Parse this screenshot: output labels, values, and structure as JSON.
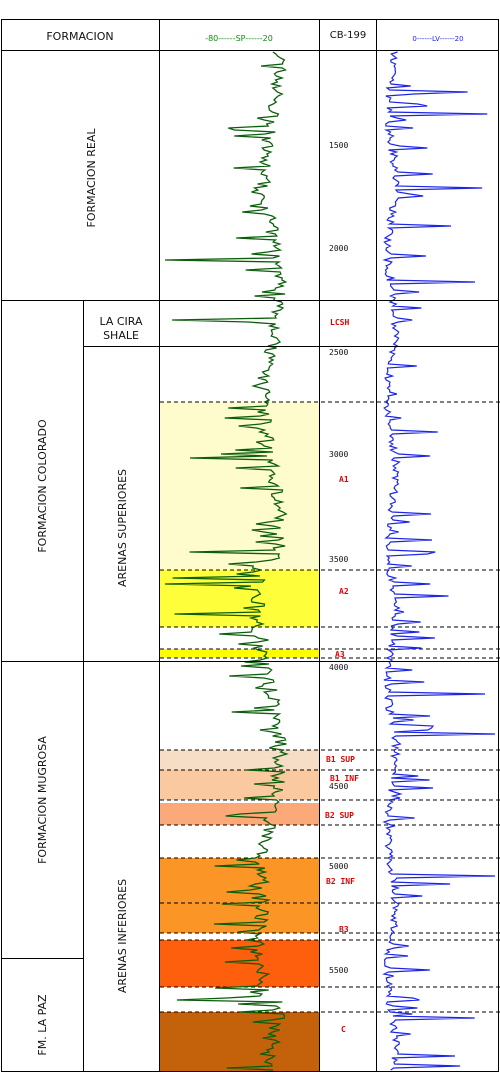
{
  "headers": {
    "formation": "FORMACION",
    "sp_scale": "-80------SP------20",
    "well": "CB-199",
    "lv_scale": "0------LV------20"
  },
  "formations": {
    "real": "FORMACION REAL",
    "colorado": "FORMACION COLORADO",
    "mugrosa": "FORMACION MUGROSA",
    "la_paz": "FM. LA PAZ"
  },
  "members": {
    "la_cira_line1": "LA CIRA",
    "la_cira_line2": "SHALE",
    "arenas_superiores": "ARENAS SUPERIORES",
    "arenas_inferiores": "ARENAS INFERIORES"
  },
  "depth_labels": [
    "1500",
    "2000",
    "2500",
    "3000",
    "3500",
    "4000",
    "4500",
    "5000",
    "5500"
  ],
  "zone_labels": [
    "LCSH",
    "A1",
    "A2",
    "A3",
    "B1 SUP",
    "B1 INF",
    "B2 SUP",
    "B2 INF",
    "B3",
    "C"
  ],
  "zones": [
    {
      "name": "A1",
      "color": "#fefbcc"
    },
    {
      "name": "A2",
      "color": "#fefe3a"
    },
    {
      "name": "A3",
      "color": "#fefe00"
    },
    {
      "name": "B1 SUP",
      "color": "#f6ddc6"
    },
    {
      "name": "B1 INF",
      "color": "#fbc99f"
    },
    {
      "name": "B2 SUP",
      "color": "#fba979"
    },
    {
      "name": "B2 INF",
      "color": "#fa9526"
    },
    {
      "name": "B3",
      "color": "#fd5f0d"
    },
    {
      "name": "C",
      "color": "#c4620c"
    }
  ],
  "colors": {
    "sp_curve": "#0c5e0c",
    "lv_curve": "#1e26e5",
    "zone_label": "#e00000",
    "grid": "#000000"
  }
}
